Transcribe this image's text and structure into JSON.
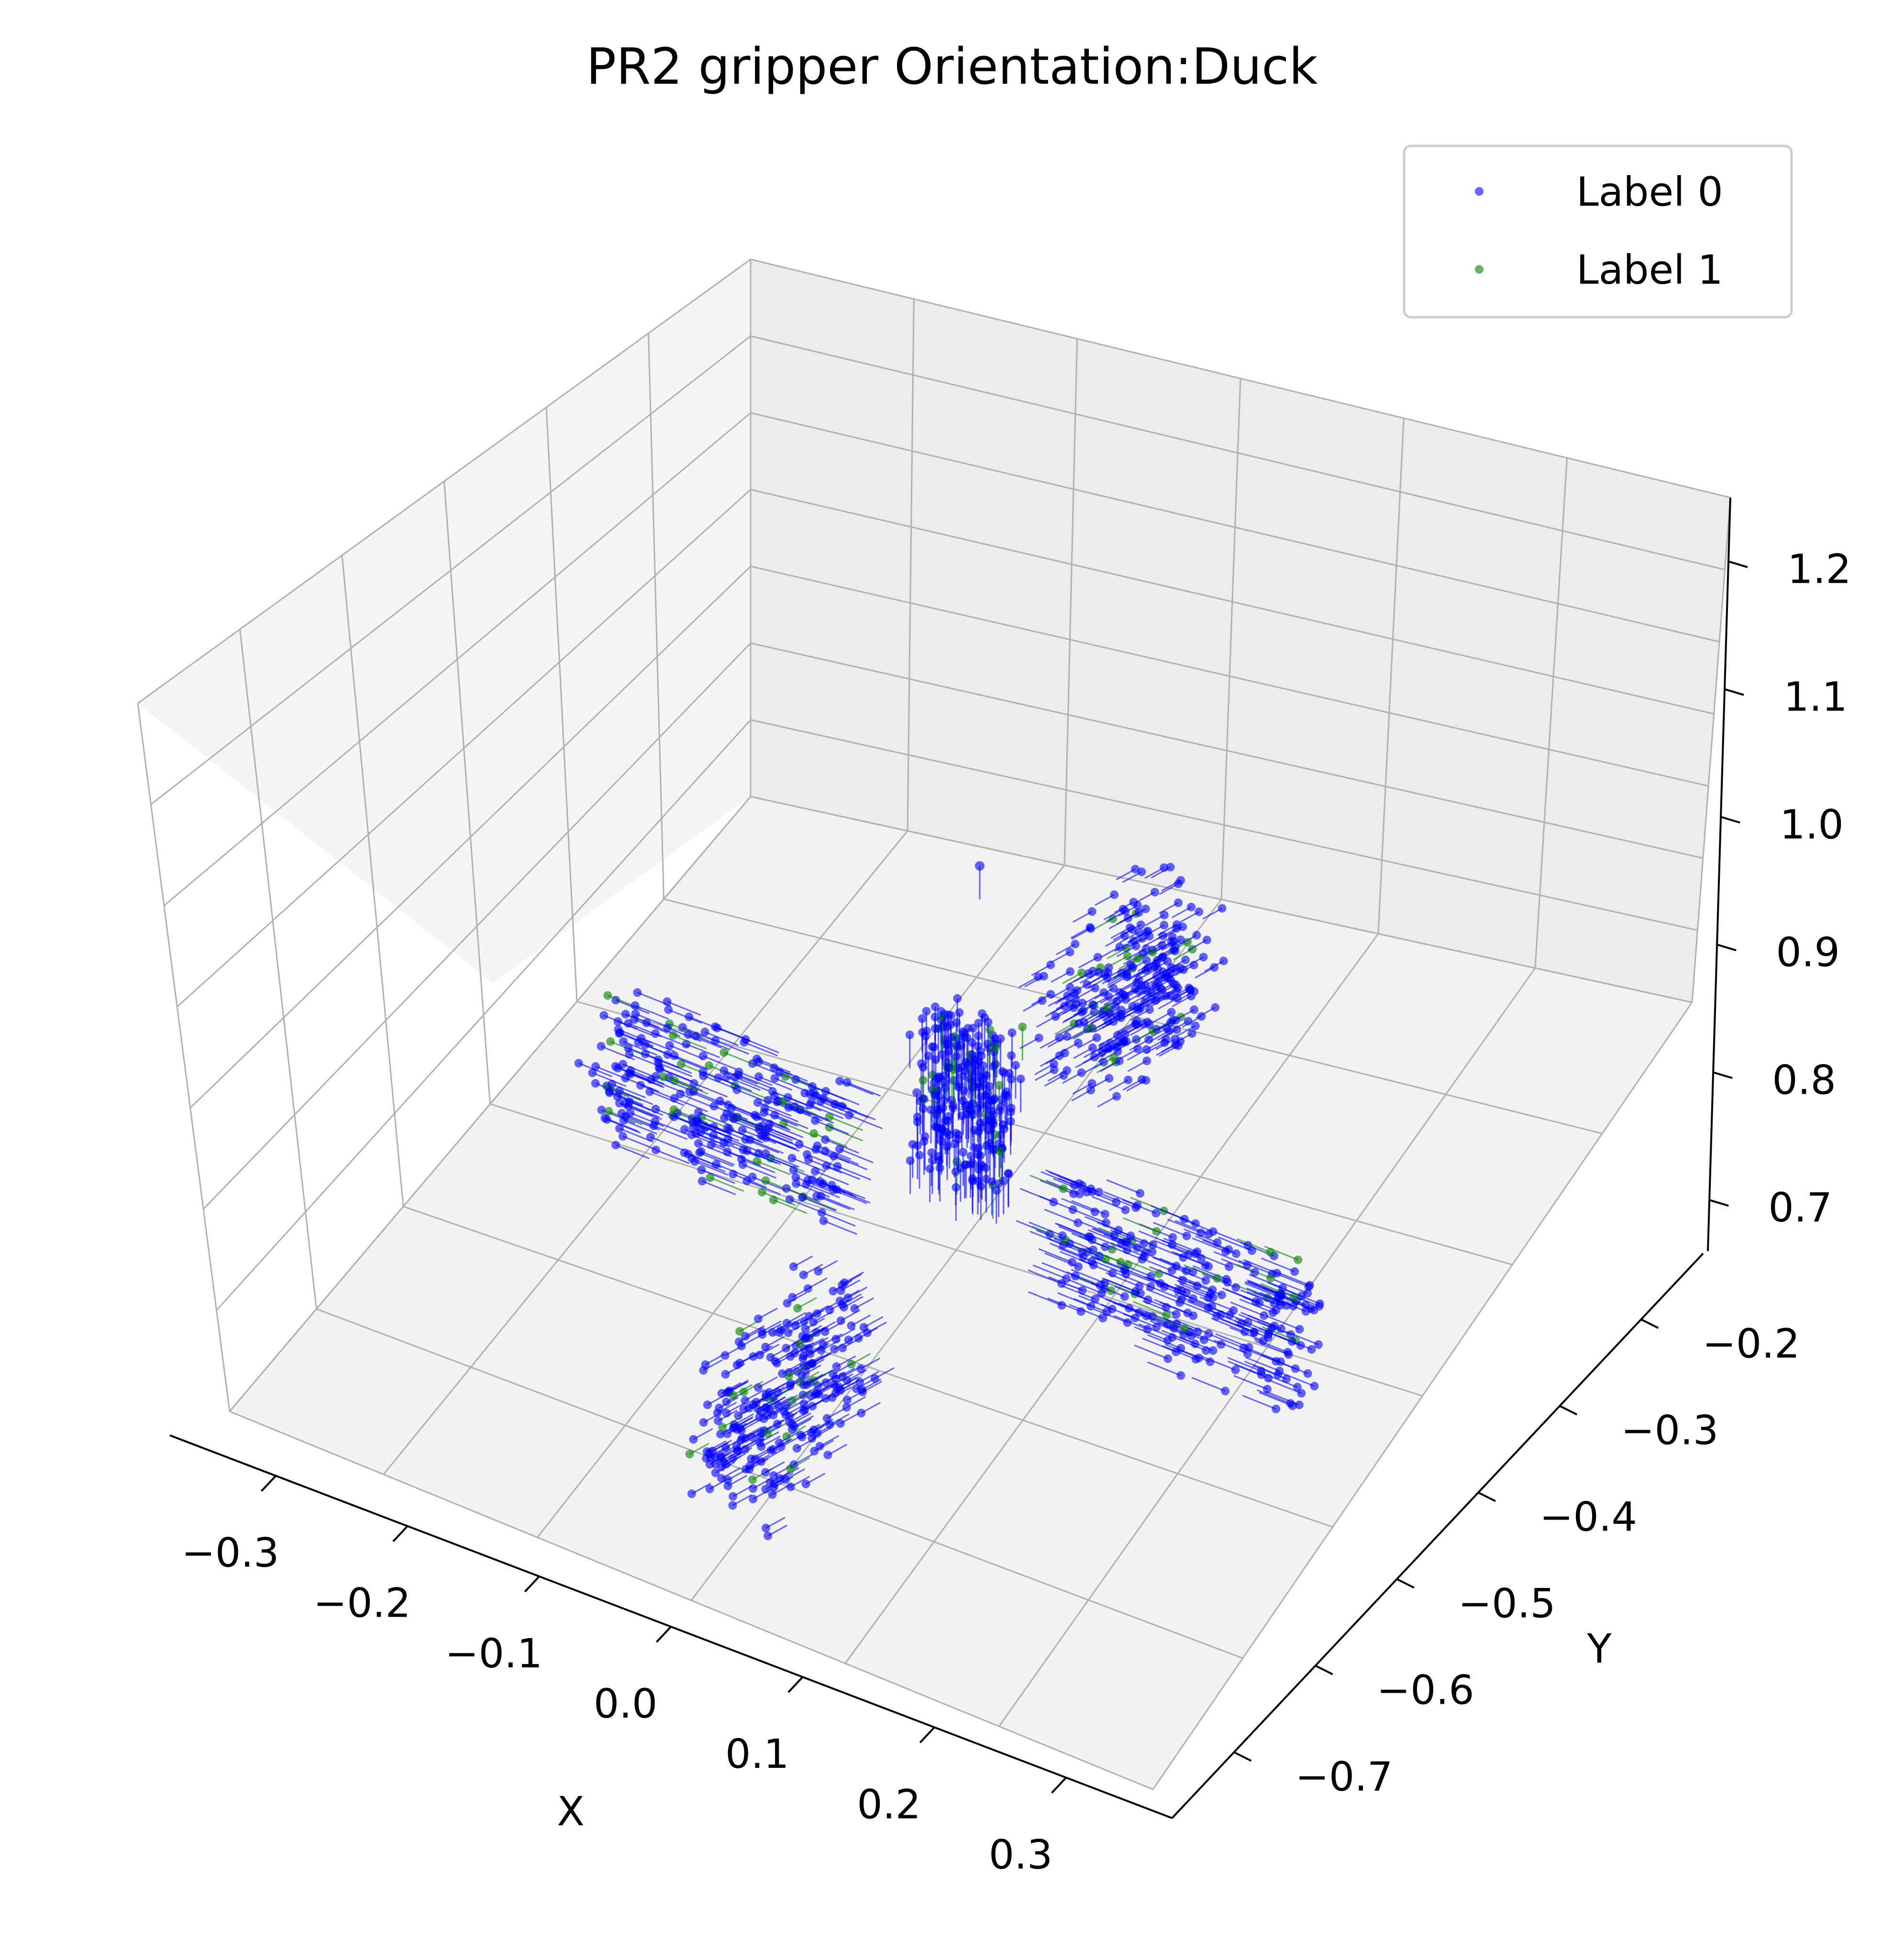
{
  "chart_data": {
    "type": "scatter",
    "projection": "3d",
    "title": "PR2 gripper Orientation:Duck",
    "xlabel": "X",
    "ylabel": "Y",
    "zlabel": "",
    "xlim": [
      -0.33,
      0.33
    ],
    "ylim": [
      -0.76,
      -0.14
    ],
    "zlim": [
      0.66,
      1.25
    ],
    "x_ticks": [
      "−0.3",
      "−0.2",
      "−0.1",
      "0.0",
      "0.1",
      "0.2",
      "0.3"
    ],
    "y_ticks": [
      "−0.7",
      "−0.6",
      "−0.5",
      "−0.4",
      "−0.3",
      "−0.2"
    ],
    "z_ticks": [
      "0.7",
      "0.8",
      "0.9",
      "1.0",
      "1.1",
      "1.2"
    ],
    "grid": true,
    "legend": {
      "placement": "top-right",
      "entries": [
        "Label 0",
        "Label 1"
      ]
    },
    "series": [
      {
        "name": "Label 0",
        "color": "#0000ff",
        "marker": "point with orientation arrow"
      },
      {
        "name": "Label 1",
        "color": "#008000",
        "marker": "point with orientation arrow"
      }
    ],
    "clusters": [
      {
        "description": "top approach",
        "x_range": [
          -0.02,
          0.04
        ],
        "y_range": [
          -0.47,
          -0.43
        ],
        "z_range": [
          0.82,
          1.02
        ],
        "arrow_direction": "down"
      },
      {
        "description": "side approach (-X)",
        "x_range": [
          -0.26,
          -0.08
        ],
        "y_range": [
          -0.47,
          -0.43
        ],
        "z_range": [
          0.7,
          0.86
        ],
        "arrow_direction": "+X"
      },
      {
        "description": "side approach (+X)",
        "x_range": [
          0.08,
          0.26
        ],
        "y_range": [
          -0.47,
          -0.43
        ],
        "z_range": [
          0.7,
          0.86
        ],
        "arrow_direction": "-X"
      },
      {
        "description": "side approach (-Y)",
        "x_range": [
          -0.03,
          0.03
        ],
        "y_range": [
          -0.72,
          -0.58
        ],
        "z_range": [
          0.7,
          0.86
        ],
        "arrow_direction": "+Y"
      },
      {
        "description": "side approach (+Y)",
        "x_range": [
          -0.03,
          0.03
        ],
        "y_range": [
          -0.3,
          -0.17
        ],
        "z_range": [
          0.7,
          0.86
        ],
        "arrow_direction": "-Y"
      }
    ],
    "outliers": [
      {
        "x": 0.02,
        "y": -0.45,
        "z": 1.22,
        "label": 0
      }
    ],
    "label1_fraction": 0.07
  },
  "colors": {
    "pane_left": "#f5f5f5",
    "pane_right": "#ececec",
    "pane_floor": "#f2f2f2",
    "grid": "#b0b0b0",
    "label0": "#0000ff",
    "label1": "#008000"
  }
}
